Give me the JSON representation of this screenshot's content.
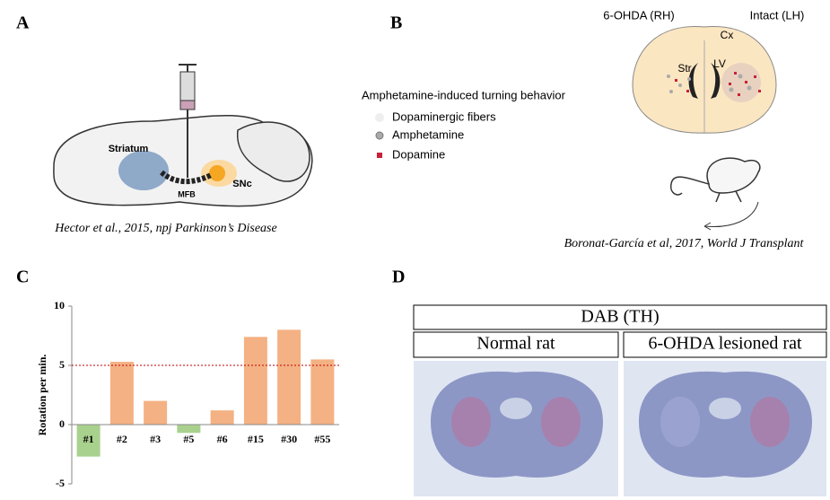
{
  "panels": {
    "a": {
      "label": "A",
      "labels": [
        "Striatum",
        "MFB",
        "SNc"
      ],
      "caption": "Hector et al., 2015, npj Parkinson’s Disease"
    },
    "b": {
      "label": "B",
      "hemispheres": [
        "6-OHDA (RH)",
        "Intact (LH)"
      ],
      "regions": [
        "Cx",
        "Str",
        "LV"
      ],
      "legend_title": "Amphetamine-induced turning behavior",
      "legend": [
        "Dopaminergic fibers",
        "Amphetamine",
        "Dopamine"
      ],
      "caption": "Boronat-García et al, 2017, World J Transplant"
    },
    "d": {
      "label": "D",
      "header": "DAB (TH)",
      "columns": [
        "Normal rat",
        "6-OHDA lesioned rat"
      ]
    }
  },
  "chart_data": {
    "type": "bar",
    "label": "C",
    "ylabel": "Rotation per min.",
    "categories": [
      "#1",
      "#2",
      "#3",
      "#5",
      "#6",
      "#15",
      "#30",
      "#55"
    ],
    "values": [
      -2.7,
      5.3,
      2,
      -0.7,
      1.2,
      7.4,
      8,
      5.5
    ],
    "color_positive": "#f4b183",
    "color_negative": "#a9d18e",
    "ylim": [
      -5,
      10
    ],
    "yticks": [
      -5,
      0,
      5,
      10
    ],
    "threshold": 5,
    "threshold_color": "#c00000"
  }
}
